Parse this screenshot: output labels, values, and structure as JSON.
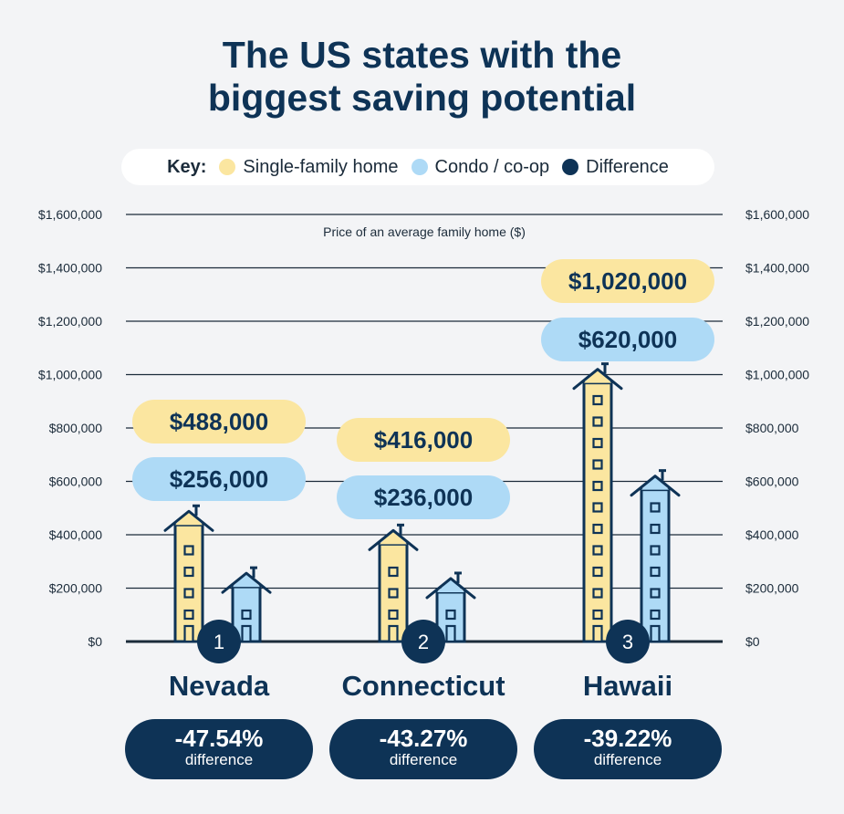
{
  "title": {
    "line1": "The US states with the",
    "line2": "biggest saving potential"
  },
  "legend": {
    "label": "Key:",
    "items": [
      {
        "name": "Single-family home",
        "color": "#fbe6a0"
      },
      {
        "name": "Condo / co-op",
        "color": "#aedaf6"
      },
      {
        "name": "Difference",
        "color": "#0e3356"
      }
    ]
  },
  "colors": {
    "ink": "#0e3356",
    "single": "#fbe6a0",
    "condo": "#aedaf6",
    "grid": "#1b2b3a",
    "background": "#f3f4f6"
  },
  "chart_data": {
    "type": "bar",
    "title": "The US states with the biggest saving potential",
    "ylabel": "Price of an average family home ($)",
    "ylim": [
      0,
      1600000
    ],
    "yticks": [
      0,
      200000,
      400000,
      600000,
      800000,
      1000000,
      1200000,
      1400000,
      1600000
    ],
    "ytick_labels": [
      "$0",
      "$200,000",
      "$400,000",
      "$600,000",
      "$800,000",
      "$1,000,000",
      "$1,200,000",
      "$1,400,000",
      "$1,600,000"
    ],
    "categories": [
      "Nevada",
      "Connecticut",
      "Hawaii"
    ],
    "ranks": [
      "1",
      "2",
      "3"
    ],
    "series": [
      {
        "name": "Single-family home",
        "values": [
          488000,
          416000,
          1020000
        ],
        "labels": [
          "$488,000",
          "$416,000",
          "$1,020,000"
        ]
      },
      {
        "name": "Condo / co-op",
        "values": [
          256000,
          236000,
          620000
        ],
        "labels": [
          "$256,000",
          "$236,000",
          "$620,000"
        ]
      }
    ],
    "difference": [
      {
        "value": "-47.54%",
        "label": "difference"
      },
      {
        "value": "-43.27%",
        "label": "difference"
      },
      {
        "value": "-39.22%",
        "label": "difference"
      }
    ],
    "grid": true
  }
}
